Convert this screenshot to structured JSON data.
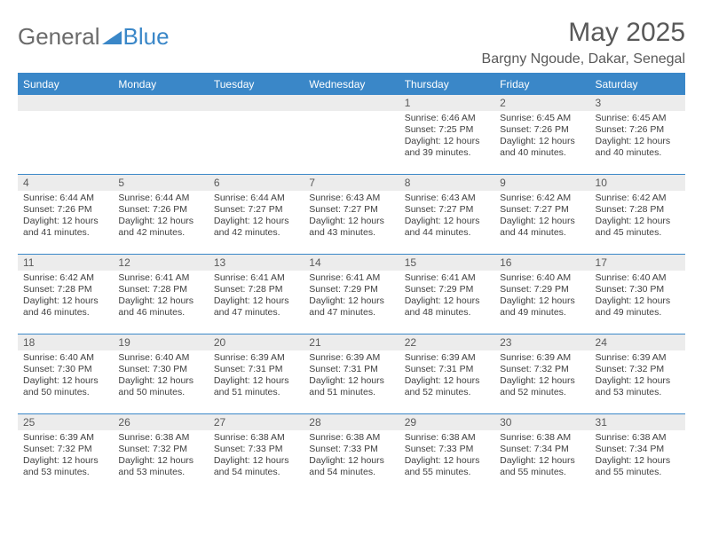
{
  "brand": {
    "left": "General",
    "right": "Blue"
  },
  "title": "May 2025",
  "location": "Bargny Ngoude, Dakar, Senegal",
  "colors": {
    "accent": "#3a87c8",
    "header_text": "#ffffff",
    "body_text": "#404040",
    "muted": "#595959",
    "day_bar": "#ececec",
    "background": "#ffffff"
  },
  "calendar": {
    "type": "table",
    "columns": [
      "Sunday",
      "Monday",
      "Tuesday",
      "Wednesday",
      "Thursday",
      "Friday",
      "Saturday"
    ],
    "col_count": 7,
    "row_count": 5,
    "first_weekday_index": 4,
    "days": [
      {
        "n": 1,
        "sr": "6:46 AM",
        "ss": "7:25 PM",
        "dl": "12 hours and 39 minutes."
      },
      {
        "n": 2,
        "sr": "6:45 AM",
        "ss": "7:26 PM",
        "dl": "12 hours and 40 minutes."
      },
      {
        "n": 3,
        "sr": "6:45 AM",
        "ss": "7:26 PM",
        "dl": "12 hours and 40 minutes."
      },
      {
        "n": 4,
        "sr": "6:44 AM",
        "ss": "7:26 PM",
        "dl": "12 hours and 41 minutes."
      },
      {
        "n": 5,
        "sr": "6:44 AM",
        "ss": "7:26 PM",
        "dl": "12 hours and 42 minutes."
      },
      {
        "n": 6,
        "sr": "6:44 AM",
        "ss": "7:27 PM",
        "dl": "12 hours and 42 minutes."
      },
      {
        "n": 7,
        "sr": "6:43 AM",
        "ss": "7:27 PM",
        "dl": "12 hours and 43 minutes."
      },
      {
        "n": 8,
        "sr": "6:43 AM",
        "ss": "7:27 PM",
        "dl": "12 hours and 44 minutes."
      },
      {
        "n": 9,
        "sr": "6:42 AM",
        "ss": "7:27 PM",
        "dl": "12 hours and 44 minutes."
      },
      {
        "n": 10,
        "sr": "6:42 AM",
        "ss": "7:28 PM",
        "dl": "12 hours and 45 minutes."
      },
      {
        "n": 11,
        "sr": "6:42 AM",
        "ss": "7:28 PM",
        "dl": "12 hours and 46 minutes."
      },
      {
        "n": 12,
        "sr": "6:41 AM",
        "ss": "7:28 PM",
        "dl": "12 hours and 46 minutes."
      },
      {
        "n": 13,
        "sr": "6:41 AM",
        "ss": "7:28 PM",
        "dl": "12 hours and 47 minutes."
      },
      {
        "n": 14,
        "sr": "6:41 AM",
        "ss": "7:29 PM",
        "dl": "12 hours and 47 minutes."
      },
      {
        "n": 15,
        "sr": "6:41 AM",
        "ss": "7:29 PM",
        "dl": "12 hours and 48 minutes."
      },
      {
        "n": 16,
        "sr": "6:40 AM",
        "ss": "7:29 PM",
        "dl": "12 hours and 49 minutes."
      },
      {
        "n": 17,
        "sr": "6:40 AM",
        "ss": "7:30 PM",
        "dl": "12 hours and 49 minutes."
      },
      {
        "n": 18,
        "sr": "6:40 AM",
        "ss": "7:30 PM",
        "dl": "12 hours and 50 minutes."
      },
      {
        "n": 19,
        "sr": "6:40 AM",
        "ss": "7:30 PM",
        "dl": "12 hours and 50 minutes."
      },
      {
        "n": 20,
        "sr": "6:39 AM",
        "ss": "7:31 PM",
        "dl": "12 hours and 51 minutes."
      },
      {
        "n": 21,
        "sr": "6:39 AM",
        "ss": "7:31 PM",
        "dl": "12 hours and 51 minutes."
      },
      {
        "n": 22,
        "sr": "6:39 AM",
        "ss": "7:31 PM",
        "dl": "12 hours and 52 minutes."
      },
      {
        "n": 23,
        "sr": "6:39 AM",
        "ss": "7:32 PM",
        "dl": "12 hours and 52 minutes."
      },
      {
        "n": 24,
        "sr": "6:39 AM",
        "ss": "7:32 PM",
        "dl": "12 hours and 53 minutes."
      },
      {
        "n": 25,
        "sr": "6:39 AM",
        "ss": "7:32 PM",
        "dl": "12 hours and 53 minutes."
      },
      {
        "n": 26,
        "sr": "6:38 AM",
        "ss": "7:32 PM",
        "dl": "12 hours and 53 minutes."
      },
      {
        "n": 27,
        "sr": "6:38 AM",
        "ss": "7:33 PM",
        "dl": "12 hours and 54 minutes."
      },
      {
        "n": 28,
        "sr": "6:38 AM",
        "ss": "7:33 PM",
        "dl": "12 hours and 54 minutes."
      },
      {
        "n": 29,
        "sr": "6:38 AM",
        "ss": "7:33 PM",
        "dl": "12 hours and 55 minutes."
      },
      {
        "n": 30,
        "sr": "6:38 AM",
        "ss": "7:34 PM",
        "dl": "12 hours and 55 minutes."
      },
      {
        "n": 31,
        "sr": "6:38 AM",
        "ss": "7:34 PM",
        "dl": "12 hours and 55 minutes."
      }
    ],
    "labels": {
      "sunrise": "Sunrise:",
      "sunset": "Sunset:",
      "daylight": "Daylight:"
    },
    "font": {
      "header_size_pt": 12,
      "daynum_size_pt": 12,
      "body_size_pt": 10.5,
      "family": "Arial"
    }
  }
}
